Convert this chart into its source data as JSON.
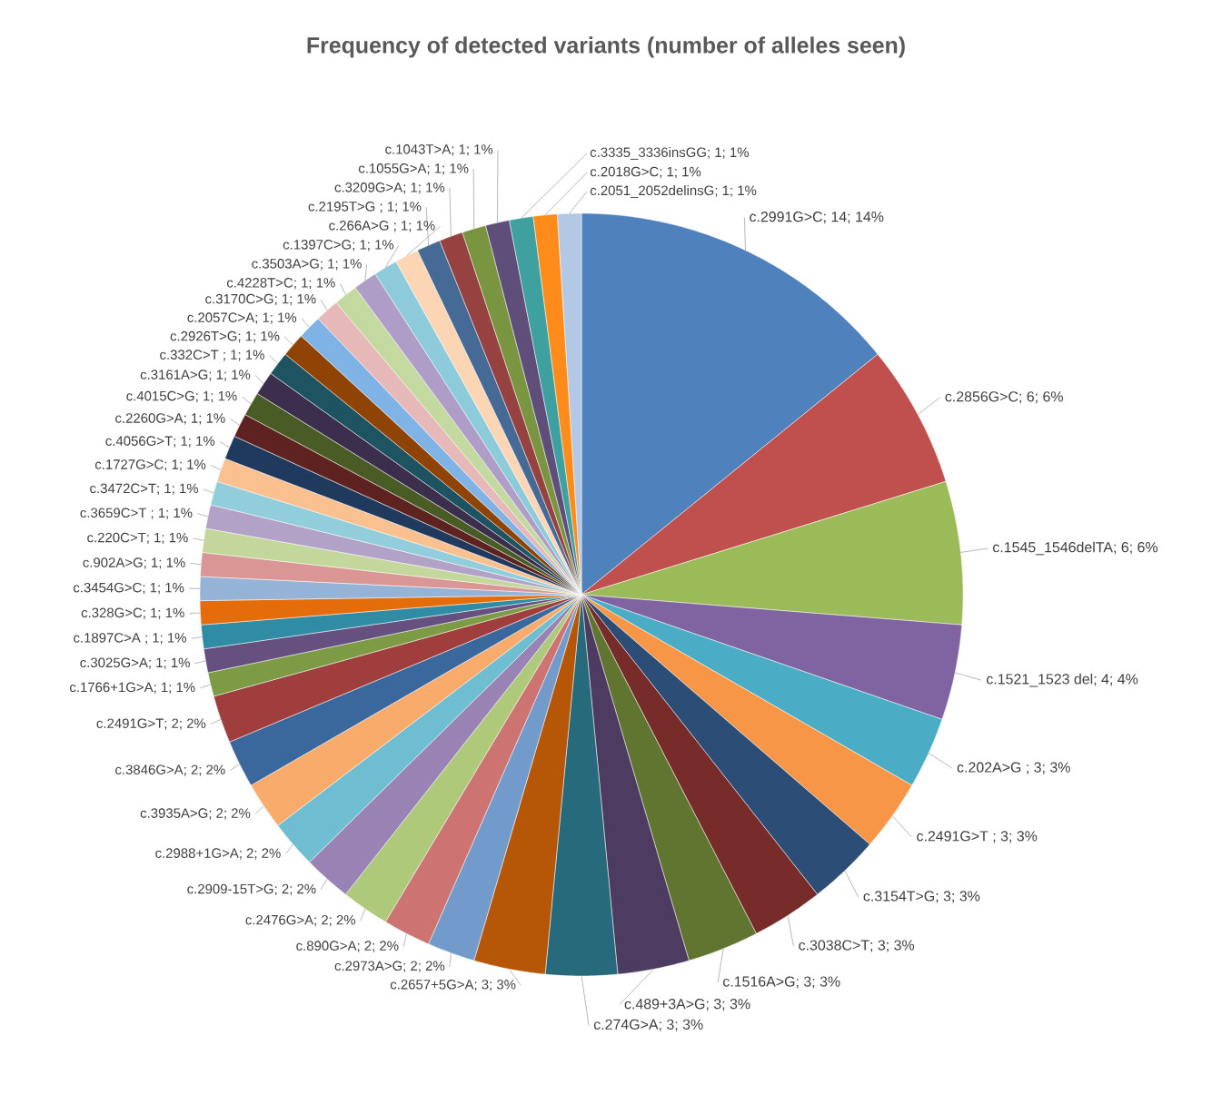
{
  "chart_data": {
    "type": "pie",
    "title": "Frequency of detected variants (number of alleles seen)",
    "categories": [
      "c.2991G>C",
      "c.2856G>C",
      "c.1545_1546delTA",
      "c.1521_1523 del",
      "c.202A>G ",
      "c.2491G>T ",
      "c.3154T>G",
      "c.3038C>T",
      "c.1516A>G",
      "c.489+3A>G",
      "c.274G>A",
      "c.2657+5G>A",
      "c.2973A>G",
      "c.890G>A",
      "c.2476G>A",
      "c.2909-15T>G",
      "c.2988+1G>A",
      "c.3935A>G",
      "c.3846G>A",
      "c.2491G>T",
      "c.1766+1G>A",
      "c.3025G>A",
      "c.1897C>A ",
      "c.328G>C",
      "c.3454G>C",
      "c.902A>G",
      "c.220C>T",
      "c.3659C>T ",
      "c.3472C>T",
      "c.1727G>C",
      "c.4056G>T",
      "c.2260G>A",
      "c.4015C>G",
      "c.3161A>G",
      "c.332C>T ",
      "c.2926T>G",
      "c.2057C>A",
      "c.3170C>G",
      "c.4228T>C",
      "c.3503A>G",
      "c.1397C>G",
      "c.266A>G ",
      "c.2195T>G ",
      "c.3209G>A",
      "c.1055G>A",
      "c.1043T>A",
      "c.3335_3336insGG",
      "c.2018G>C",
      "c.2051_2052delinsG"
    ],
    "values": [
      14,
      6,
      6,
      4,
      3,
      3,
      3,
      3,
      3,
      3,
      3,
      3,
      2,
      2,
      2,
      2,
      2,
      2,
      2,
      2,
      1,
      1,
      1,
      1,
      1,
      1,
      1,
      1,
      1,
      1,
      1,
      1,
      1,
      1,
      1,
      1,
      1,
      1,
      1,
      1,
      1,
      1,
      1,
      1,
      1,
      1,
      1,
      1,
      1
    ],
    "value_labels": [
      "; 14; 14%",
      "; 6; 6%",
      "; 6; 6%",
      "; 4; 4%",
      "; 3; 3%",
      "; 3; 3%",
      "; 3; 3%",
      "; 3; 3%",
      "; 3; 3%",
      "; 3; 3%",
      "; 3; 3%",
      "; 3; 3%",
      "; 2; 2%",
      "; 2; 2%",
      "; 2; 2%",
      "; 2; 2%",
      "; 2; 2%",
      "; 2; 2%",
      "; 2; 2%",
      "; 2; 2%",
      "; 1; 1%",
      "; 1; 1%",
      "; 1; 1%",
      "; 1; 1%",
      "; 1; 1%",
      "; 1; 1%",
      "; 1; 1%",
      "; 1; 1%",
      "; 1; 1%",
      "; 1; 1%",
      "; 1; 1%",
      "; 1; 1%",
      "; 1; 1%",
      "; 1; 1%",
      "; 1; 1%",
      "; 1; 1%",
      "; 1; 1%",
      "; 1; 1%",
      "; 1; 1%",
      "; 1; 1%",
      "; 1; 1%",
      "; 1; 1%",
      "; 1; 1%",
      "; 1; 1%",
      "; 1; 1%",
      "; 1; 1%",
      "; 1; 1%",
      "; 1; 1%",
      "; 1; 1%"
    ],
    "colors": [
      "#4f81bd",
      "#c0504d",
      "#9bbb59",
      "#8064a2",
      "#4bacc6",
      "#f79646",
      "#2c4d75",
      "#772c2a",
      "#5f7530",
      "#4d3b62",
      "#276a7c",
      "#b65708",
      "#729aca",
      "#cd7371",
      "#afc97a",
      "#9983b5",
      "#6fbdd1",
      "#f9ab6b",
      "#3a679c",
      "#9f3e3c",
      "#7d9b44",
      "#66507f",
      "#2f8ca4",
      "#e46c0a",
      "#95b3d7",
      "#d99694",
      "#c3d69b",
      "#b2a2c7",
      "#92cddc",
      "#fac08f",
      "#1f3a5c",
      "#5e2220",
      "#4a5c25",
      "#3c2e4d",
      "#1e5361",
      "#8f4406",
      "#7fb2e5",
      "#e6b8b7",
      "#c3d9a0",
      "#ae9ec7",
      "#8dcbdb",
      "#fcd5b4",
      "#466a96",
      "#954240",
      "#7a9540",
      "#5f4d7a",
      "#3fa0a0",
      "#ff8c1a",
      "#b3c8e4"
    ]
  }
}
